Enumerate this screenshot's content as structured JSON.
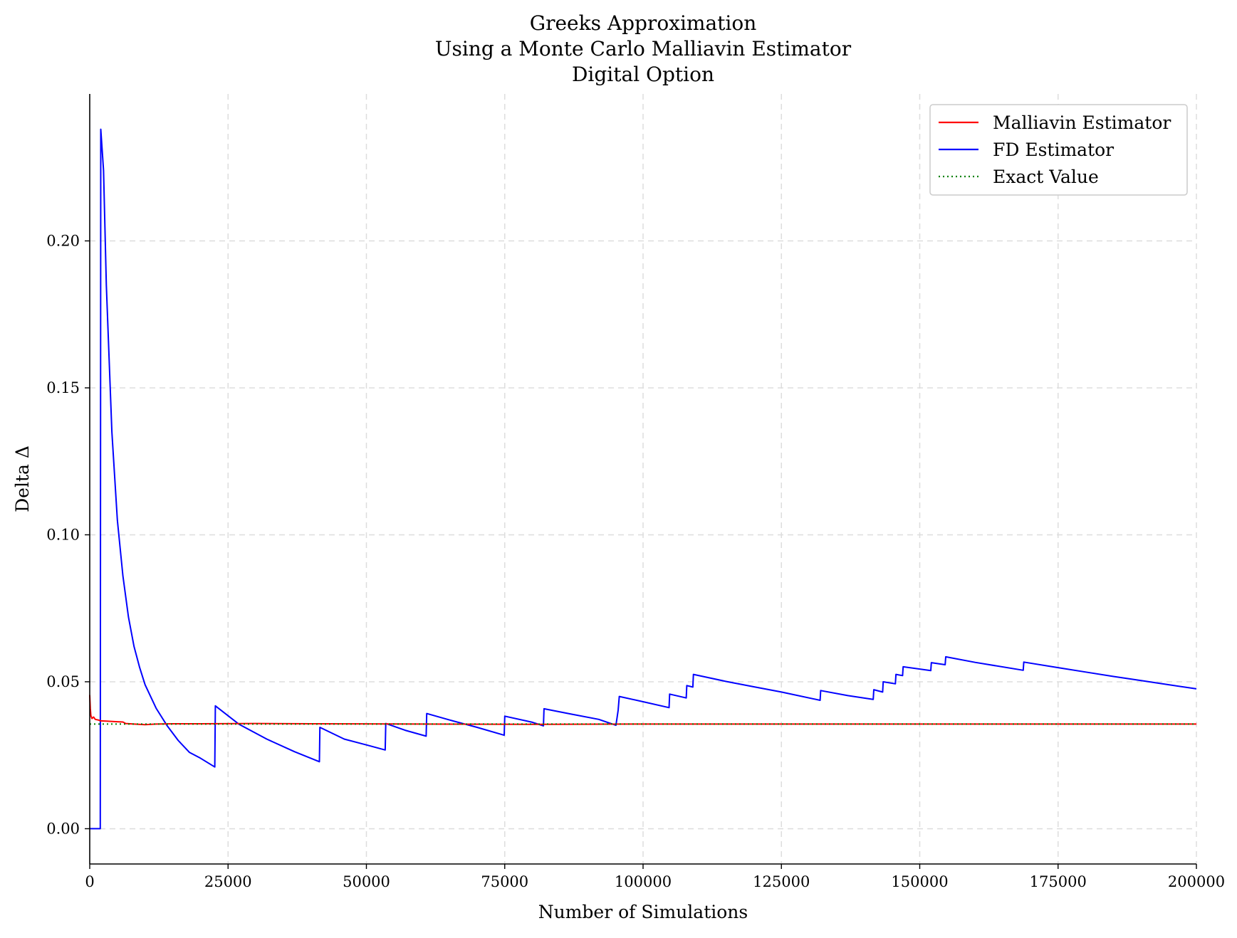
{
  "chart_data": {
    "type": "line",
    "title": [
      "Greeks Approximation",
      "Using a Monte Carlo Malliavin Estimator",
      "Digital Option"
    ],
    "xlabel": "Number of Simulations",
    "ylabel": "Delta Δ",
    "xlim": [
      0,
      200000
    ],
    "ylim": [
      -0.012,
      0.25
    ],
    "xticks": [
      0,
      25000,
      50000,
      75000,
      100000,
      125000,
      150000,
      175000,
      200000
    ],
    "xtick_labels": [
      "0",
      "25000",
      "50000",
      "75000",
      "100000",
      "125000",
      "150000",
      "175000",
      "200000"
    ],
    "yticks": [
      0.0,
      0.05,
      0.1,
      0.15,
      0.2
    ],
    "ytick_labels": [
      "0.00",
      "0.05",
      "0.10",
      "0.15",
      "0.20"
    ],
    "grid": true,
    "legend_position": "top-right",
    "series": [
      {
        "name": "Malliavin Estimator",
        "color": "#ff0000",
        "style": "solid",
        "x": [
          0,
          100,
          200,
          400,
          700,
          1000,
          1500,
          2000,
          3000,
          5000,
          6000,
          6500,
          8000,
          10000,
          12000,
          15000,
          20000,
          30000,
          40000,
          60000,
          80000,
          100000,
          125000,
          150000,
          175000,
          200000
        ],
        "y": [
          0.0455,
          0.041,
          0.0385,
          0.0375,
          0.038,
          0.0372,
          0.037,
          0.0367,
          0.0366,
          0.0364,
          0.0363,
          0.0358,
          0.0356,
          0.0354,
          0.0356,
          0.0357,
          0.0357,
          0.0358,
          0.0357,
          0.0356,
          0.0355,
          0.0356,
          0.0356,
          0.0356,
          0.0356,
          0.0356
        ]
      },
      {
        "name": "FD Estimator",
        "color": "#0000ff",
        "style": "solid",
        "x": [
          0,
          1900,
          2000,
          2500,
          3000,
          4000,
          5000,
          6000,
          7000,
          8000,
          9000,
          10000,
          12000,
          14000,
          16000,
          18000,
          20000,
          22600,
          22700,
          27000,
          32000,
          37000,
          41500,
          41600,
          46000,
          50000,
          53400,
          53500,
          57000,
          60800,
          60900,
          65000,
          70000,
          74900,
          75000,
          80000,
          82000,
          82100,
          87000,
          92000,
          95100,
          95300,
          95500,
          95700,
          100000,
          104700,
          104800,
          107800,
          107900,
          109000,
          109100,
          115000,
          120000,
          125000,
          132000,
          132100,
          137000,
          141600,
          141700,
          143300,
          143400,
          145600,
          145700,
          146900,
          147000,
          152000,
          152100,
          154600,
          154700,
          160000,
          168700,
          168800,
          175000,
          180000,
          185000,
          190000,
          195000,
          200000
        ],
        "y": [
          0.0,
          0.0,
          0.238,
          0.224,
          0.185,
          0.135,
          0.105,
          0.086,
          0.072,
          0.062,
          0.055,
          0.049,
          0.041,
          0.035,
          0.03,
          0.026,
          0.024,
          0.021,
          0.0418,
          0.0355,
          0.0305,
          0.0262,
          0.0228,
          0.0345,
          0.0305,
          0.0285,
          0.0268,
          0.0358,
          0.0335,
          0.0315,
          0.0392,
          0.037,
          0.0345,
          0.0318,
          0.0383,
          0.0362,
          0.035,
          0.0408,
          0.039,
          0.0372,
          0.0352,
          0.0378,
          0.0403,
          0.045,
          0.0432,
          0.0412,
          0.0458,
          0.0445,
          0.0487,
          0.0482,
          0.0525,
          0.0501,
          0.0483,
          0.0465,
          0.0437,
          0.047,
          0.0453,
          0.044,
          0.0473,
          0.0465,
          0.05,
          0.0493,
          0.0525,
          0.0521,
          0.0551,
          0.0538,
          0.0565,
          0.0558,
          0.0585,
          0.0566,
          0.0539,
          0.0567,
          0.0548,
          0.0533,
          0.0518,
          0.0504,
          0.049,
          0.0476
        ]
      },
      {
        "name": "Exact Value",
        "color": "#008000",
        "style": "dotted",
        "x": [
          0,
          200000
        ],
        "y": [
          0.0356,
          0.0356
        ]
      }
    ]
  }
}
